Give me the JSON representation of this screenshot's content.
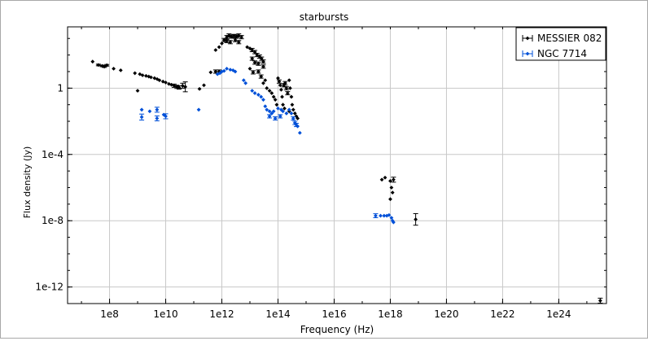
{
  "chart_data": {
    "type": "scatter",
    "title": "starbursts",
    "xlabel": "Frequency (Hz)",
    "ylabel": "Flux density (Jy)",
    "x_scale": "log",
    "y_scale": "log",
    "xlim": [
      3200000.0,
      5e+25
    ],
    "ylim": [
      1e-13,
      5000.0
    ],
    "x_ticks": [
      {
        "value": 100000000.0,
        "label": "1e8"
      },
      {
        "value": 10000000000.0,
        "label": "1e10"
      },
      {
        "value": 1000000000000.0,
        "label": "1e12"
      },
      {
        "value": 100000000000000.0,
        "label": "1e14"
      },
      {
        "value": 1e+16,
        "label": "1e16"
      },
      {
        "value": 1e+18,
        "label": "1e18"
      },
      {
        "value": 1e+20,
        "label": "1e20"
      },
      {
        "value": 1e+22,
        "label": "1e22"
      },
      {
        "value": 1e+24,
        "label": "1e24"
      }
    ],
    "y_ticks": [
      {
        "value": 1,
        "label": "1"
      },
      {
        "value": 0.0001,
        "label": "1e-4"
      },
      {
        "value": 1e-08,
        "label": "1e-8"
      },
      {
        "value": 1e-12,
        "label": "1e-12"
      }
    ],
    "grid": true,
    "legend_position": "top-right",
    "series": [
      {
        "name": "MESSIER 082",
        "color": "#000000",
        "points": [
          {
            "x": 25000000.0,
            "y": 40
          },
          {
            "x": 40000000.0,
            "y": 25,
            "err": 0.05
          },
          {
            "x": 55000000.0,
            "y": 22,
            "err": 0.05
          },
          {
            "x": 65000000.0,
            "y": 20,
            "err": 0.05
          },
          {
            "x": 80000000.0,
            "y": 24,
            "err": 0.05
          },
          {
            "x": 140000000.0,
            "y": 15
          },
          {
            "x": 250000000.0,
            "y": 12
          },
          {
            "x": 800000000.0,
            "y": 8
          },
          {
            "x": 1200000000.0,
            "y": 7
          },
          {
            "x": 1500000000.0,
            "y": 6
          },
          {
            "x": 2000000000.0,
            "y": 5.5
          },
          {
            "x": 2500000000.0,
            "y": 5
          },
          {
            "x": 3000000000.0,
            "y": 4.5
          },
          {
            "x": 4000000000.0,
            "y": 4
          },
          {
            "x": 5000000000.0,
            "y": 3.5
          },
          {
            "x": 6000000000.0,
            "y": 3
          },
          {
            "x": 8000000000.0,
            "y": 2.5
          },
          {
            "x": 10000000000.0,
            "y": 2.2
          },
          {
            "x": 13000000000.0,
            "y": 1.8
          },
          {
            "x": 16000000000.0,
            "y": 1.6
          },
          {
            "x": 20000000000.0,
            "y": 1.4,
            "err": 0.1
          },
          {
            "x": 25000000000.0,
            "y": 1.2,
            "err": 0.1
          },
          {
            "x": 30000000000.0,
            "y": 1.1,
            "err": 0.1
          },
          {
            "x": 40000000000.0,
            "y": 1.4,
            "err": 0.15
          },
          {
            "x": 50000000000.0,
            "y": 1.2,
            "err": 0.3
          },
          {
            "x": 1000000000.0,
            "y": 0.7
          },
          {
            "x": 160000000000.0,
            "y": 0.9
          },
          {
            "x": 230000000000.0,
            "y": 1.5
          },
          {
            "x": 400000000000.0,
            "y": 9
          },
          {
            "x": 600000000000.0,
            "y": 10,
            "err": 0.1
          },
          {
            "x": 800000000000.0,
            "y": 10,
            "err": 0.1
          },
          {
            "x": 600000000000.0,
            "y": 200
          },
          {
            "x": 800000000000.0,
            "y": 300
          },
          {
            "x": 1000000000000.0,
            "y": 500
          },
          {
            "x": 1200000000000.0,
            "y": 800,
            "err": 0.1
          },
          {
            "x": 1500000000000.0,
            "y": 1200,
            "err": 0.1
          },
          {
            "x": 1800000000000.0,
            "y": 1500,
            "err": 0.1
          },
          {
            "x": 2200000000000.0,
            "y": 1300,
            "err": 0.1
          },
          {
            "x": 2700000000000.0,
            "y": 1400,
            "err": 0.1
          },
          {
            "x": 3300000000000.0,
            "y": 1300,
            "err": 0.1
          },
          {
            "x": 4000000000000.0,
            "y": 1500,
            "err": 0.1
          },
          {
            "x": 5000000000000.0,
            "y": 1200,
            "err": 0.1
          },
          {
            "x": 1500000000000.0,
            "y": 700,
            "err": 0.1
          },
          {
            "x": 2000000000000.0,
            "y": 600,
            "err": 0.1
          },
          {
            "x": 3000000000000.0,
            "y": 800,
            "err": 0.1
          },
          {
            "x": 4000000000000.0,
            "y": 600,
            "err": 0.1
          },
          {
            "x": 8000000000000.0,
            "y": 300
          },
          {
            "x": 10000000000000.0,
            "y": 250
          },
          {
            "x": 12000000000000.0,
            "y": 200,
            "err": 0.1
          },
          {
            "x": 15000000000000.0,
            "y": 150,
            "err": 0.1
          },
          {
            "x": 18000000000000.0,
            "y": 100,
            "err": 0.1
          },
          {
            "x": 22000000000000.0,
            "y": 80,
            "err": 0.1
          },
          {
            "x": 26000000000000.0,
            "y": 60,
            "err": 0.1
          },
          {
            "x": 30000000000000.0,
            "y": 40,
            "err": 0.1
          },
          {
            "x": 12000000000000.0,
            "y": 60,
            "err": 0.1
          },
          {
            "x": 15000000000000.0,
            "y": 35,
            "err": 0.1
          },
          {
            "x": 10000000000000.0,
            "y": 15
          },
          {
            "x": 13000000000000.0,
            "y": 9,
            "err": 0.1
          },
          {
            "x": 20000000000000.0,
            "y": 10,
            "err": 0.1
          },
          {
            "x": 25000000000000.0,
            "y": 5,
            "err": 0.1
          },
          {
            "x": 20000000000000.0,
            "y": 30,
            "err": 0.1
          },
          {
            "x": 30000000000000.0,
            "y": 20,
            "err": 0.1
          },
          {
            "x": 30000000000000.0,
            "y": 2
          },
          {
            "x": 35000000000000.0,
            "y": 3
          },
          {
            "x": 40000000000000.0,
            "y": 1
          },
          {
            "x": 50000000000000.0,
            "y": 0.7
          },
          {
            "x": 60000000000000.0,
            "y": 0.5
          },
          {
            "x": 70000000000000.0,
            "y": 0.3
          },
          {
            "x": 100000000000000.0,
            "y": 4
          },
          {
            "x": 110000000000000.0,
            "y": 2.5,
            "err": 0.1
          },
          {
            "x": 120000000000000.0,
            "y": 1.5
          },
          {
            "x": 130000000000000.0,
            "y": 0.8
          },
          {
            "x": 140000000000000.0,
            "y": 0.3
          },
          {
            "x": 150000000000000.0,
            "y": 0.1
          },
          {
            "x": 160000000000000.0,
            "y": 1.5,
            "err": 0.1
          },
          {
            "x": 180000000000000.0,
            "y": 2,
            "err": 0.1
          },
          {
            "x": 200000000000000.0,
            "y": 1,
            "err": 0.1
          },
          {
            "x": 220000000000000.0,
            "y": 0.5,
            "err": 0.1
          },
          {
            "x": 250000000000000.0,
            "y": 3
          },
          {
            "x": 270000000000000.0,
            "y": 1
          },
          {
            "x": 300000000000000.0,
            "y": 0.3
          },
          {
            "x": 320000000000000.0,
            "y": 0.1
          },
          {
            "x": 350000000000000.0,
            "y": 0.05
          },
          {
            "x": 400000000000000.0,
            "y": 0.03
          },
          {
            "x": 450000000000000.0,
            "y": 0.02
          },
          {
            "x": 500000000000000.0,
            "y": 0.015
          },
          {
            "x": 80000000000000.0,
            "y": 0.2
          },
          {
            "x": 90000000000000.0,
            "y": 0.1
          },
          {
            "x": 170000000000000.0,
            "y": 0.06
          },
          {
            "x": 250000000000000.0,
            "y": 0.04
          },
          {
            "x": 5e+17,
            "y": 3e-06
          },
          {
            "x": 6.5e+17,
            "y": 4e-06
          },
          {
            "x": 1e+18,
            "y": 2.5e-06
          },
          {
            "x": 1.3e+18,
            "y": 3e-06,
            "err": 0.15
          },
          {
            "x": 1.1e+18,
            "y": 1e-06
          },
          {
            "x": 1.2e+18,
            "y": 5e-07
          },
          {
            "x": 1e+18,
            "y": 2e-07
          },
          {
            "x": 8e+18,
            "y": 1.2e-08,
            "err": 0.35
          },
          {
            "x": 3e+25,
            "y": 1.5e-13,
            "err": 0.15
          }
        ]
      },
      {
        "name": "NGC 7714",
        "color": "#0050d8",
        "points": [
          {
            "x": 1400000000.0,
            "y": 0.05
          },
          {
            "x": 1400000000.0,
            "y": 0.018,
            "err": 0.18
          },
          {
            "x": 2700000000.0,
            "y": 0.04
          },
          {
            "x": 4900000000.0,
            "y": 0.05,
            "err": 0.15
          },
          {
            "x": 4900000000.0,
            "y": 0.015,
            "err": 0.15
          },
          {
            "x": 8500000000.0,
            "y": 0.025
          },
          {
            "x": 10000000000.0,
            "y": 0.02,
            "err": 0.15
          },
          {
            "x": 150000000000.0,
            "y": 0.05
          },
          {
            "x": 700000000000.0,
            "y": 7
          },
          {
            "x": 850000000000.0,
            "y": 8
          },
          {
            "x": 1000000000000.0,
            "y": 10
          },
          {
            "x": 1200000000000.0,
            "y": 11
          },
          {
            "x": 1500000000000.0,
            "y": 15
          },
          {
            "x": 2000000000000.0,
            "y": 13
          },
          {
            "x": 2500000000000.0,
            "y": 12
          },
          {
            "x": 3000000000000.0,
            "y": 10
          },
          {
            "x": 6000000000000.0,
            "y": 3
          },
          {
            "x": 7000000000000.0,
            "y": 2
          },
          {
            "x": 12000000000000.0,
            "y": 0.7
          },
          {
            "x": 15000000000000.0,
            "y": 0.5
          },
          {
            "x": 20000000000000.0,
            "y": 0.4
          },
          {
            "x": 25000000000000.0,
            "y": 0.3
          },
          {
            "x": 30000000000000.0,
            "y": 0.2
          },
          {
            "x": 35000000000000.0,
            "y": 0.08
          },
          {
            "x": 40000000000000.0,
            "y": 0.05
          },
          {
            "x": 50000000000000.0,
            "y": 0.04
          },
          {
            "x": 60000000000000.0,
            "y": 0.03
          },
          {
            "x": 70000000000000.0,
            "y": 0.04
          },
          {
            "x": 100000000000000.0,
            "y": 0.06
          },
          {
            "x": 130000000000000.0,
            "y": 0.05
          },
          {
            "x": 150000000000000.0,
            "y": 0.04
          },
          {
            "x": 200000000000000.0,
            "y": 0.03
          },
          {
            "x": 50000000000000.0,
            "y": 0.02,
            "err": 0.1
          },
          {
            "x": 80000000000000.0,
            "y": 0.015,
            "err": 0.1
          },
          {
            "x": 120000000000000.0,
            "y": 0.02,
            "err": 0.1
          },
          {
            "x": 250000000000000.0,
            "y": 0.05
          },
          {
            "x": 300000000000000.0,
            "y": 0.03
          },
          {
            "x": 350000000000000.0,
            "y": 0.015,
            "err": 0.1
          },
          {
            "x": 400000000000000.0,
            "y": 0.008,
            "err": 0.1
          },
          {
            "x": 450000000000000.0,
            "y": 0.006,
            "err": 0.1
          },
          {
            "x": 500000000000000.0,
            "y": 0.005
          },
          {
            "x": 600000000000000.0,
            "y": 0.002
          },
          {
            "x": 3e+17,
            "y": 2e-08,
            "err": 0.12
          },
          {
            "x": 4.5e+17,
            "y": 2e-08
          },
          {
            "x": 6e+17,
            "y": 2e-08
          },
          {
            "x": 7.5e+17,
            "y": 2e-08
          },
          {
            "x": 9e+17,
            "y": 2.2e-08
          },
          {
            "x": 1.1e+18,
            "y": 1.5e-08
          },
          {
            "x": 1.2e+18,
            "y": 1e-08
          },
          {
            "x": 1.3e+18,
            "y": 8e-09
          }
        ]
      }
    ]
  }
}
